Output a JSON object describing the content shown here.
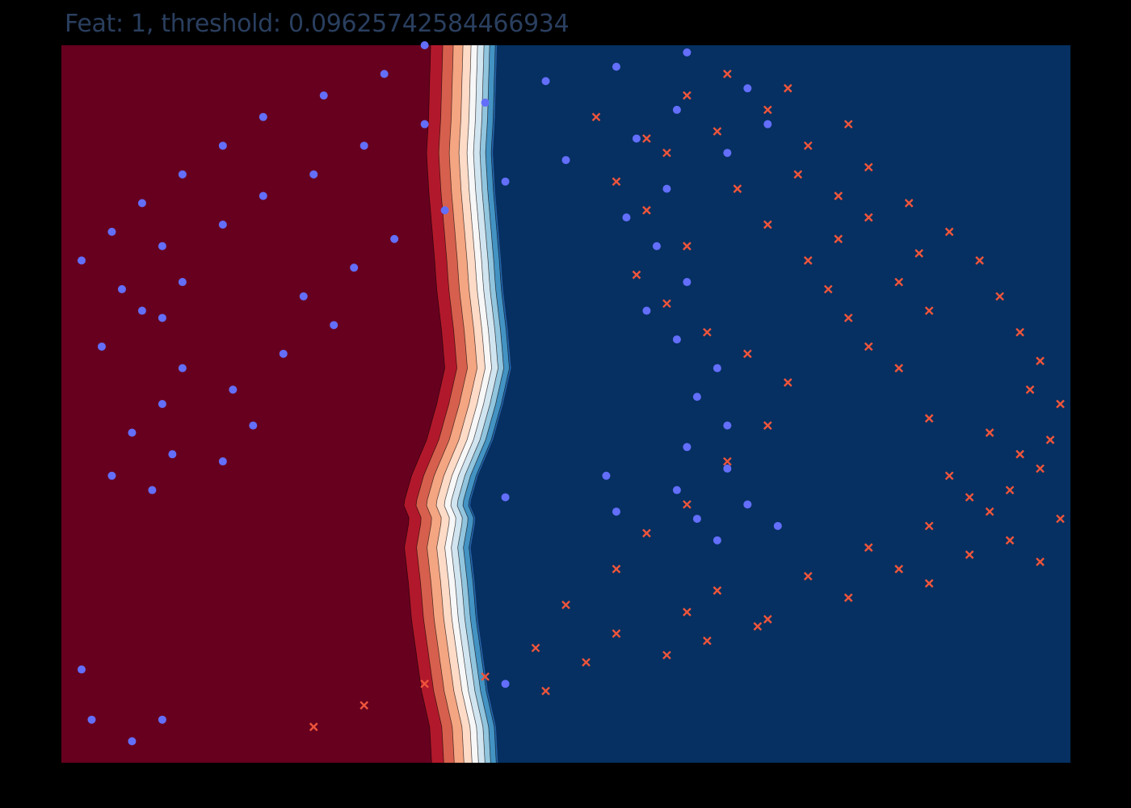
{
  "chart_data": {
    "type": "scatter",
    "title": "Feat: 1, threshold: 0.09625742584466934",
    "xlabel": "",
    "ylabel": "",
    "xlim": [
      0,
      1
    ],
    "ylim": [
      0,
      1
    ],
    "grid": false,
    "legend": "none",
    "colors": {
      "class_0": "#ef553b",
      "class_1": "#636efa",
      "region_0": "#67001f",
      "region_1": "#053061",
      "title": "#2a3f5f"
    },
    "decision_boundary": {
      "feature": 1,
      "threshold": 0.09625742584466934,
      "boundary_curve": [
        [
          0.0,
          0.415
        ],
        [
          0.05,
          0.413
        ],
        [
          0.1,
          0.405
        ],
        [
          0.15,
          0.4
        ],
        [
          0.2,
          0.395
        ],
        [
          0.25,
          0.392
        ],
        [
          0.3,
          0.388
        ],
        [
          0.34,
          0.393
        ],
        [
          0.36,
          0.387
        ],
        [
          0.4,
          0.395
        ],
        [
          0.45,
          0.41
        ],
        [
          0.5,
          0.42
        ],
        [
          0.55,
          0.428
        ],
        [
          0.6,
          0.425
        ],
        [
          0.66,
          0.42
        ],
        [
          0.7,
          0.418
        ],
        [
          0.75,
          0.415
        ],
        [
          0.8,
          0.412
        ],
        [
          0.85,
          0.41
        ],
        [
          0.9,
          0.412
        ],
        [
          0.95,
          0.413
        ],
        [
          1.0,
          0.414
        ]
      ]
    },
    "series": [
      {
        "marker": "x",
        "class": 0,
        "points": [
          [
            0.05,
            0.25
          ],
          [
            0.08,
            0.3
          ],
          [
            0.11,
            0.36
          ],
          [
            0.12,
            0.42
          ],
          [
            0.1,
            0.48
          ],
          [
            0.16,
            0.47
          ],
          [
            0.14,
            0.52
          ],
          [
            0.18,
            0.55
          ],
          [
            0.21,
            0.62
          ],
          [
            0.24,
            0.65
          ],
          [
            0.2,
            0.7
          ],
          [
            0.26,
            0.74
          ],
          [
            0.3,
            0.8
          ],
          [
            0.27,
            0.83
          ],
          [
            0.33,
            0.86
          ],
          [
            0.29,
            0.9
          ],
          [
            0.35,
            0.92
          ],
          [
            0.4,
            0.88
          ],
          [
            0.38,
            0.94
          ],
          [
            0.41,
            0.97
          ],
          [
            0.15,
            0.6
          ],
          [
            0.17,
            0.64
          ],
          [
            0.19,
            0.69
          ],
          [
            0.23,
            0.78
          ],
          [
            0.25,
            0.86
          ],
          [
            0.31,
            0.94
          ],
          [
            0.37,
            0.9
          ],
          [
            0.43,
            0.95
          ],
          [
            0.46,
            0.92
          ],
          [
            0.52,
            0.96
          ],
          [
            0.48,
            0.86
          ],
          [
            0.55,
            0.83
          ],
          [
            0.58,
            0.8
          ],
          [
            0.62,
            0.78
          ],
          [
            0.66,
            0.76
          ],
          [
            0.7,
            0.74
          ],
          [
            0.73,
            0.77
          ],
          [
            0.76,
            0.8
          ],
          [
            0.79,
            0.77
          ],
          [
            0.82,
            0.73
          ],
          [
            0.22,
            0.5
          ],
          [
            0.27,
            0.55
          ],
          [
            0.32,
            0.58
          ],
          [
            0.36,
            0.62
          ],
          [
            0.42,
            0.66
          ],
          [
            0.47,
            0.7
          ],
          [
            0.53,
            0.72
          ],
          [
            0.57,
            0.68
          ],
          [
            0.6,
            0.64
          ],
          [
            0.64,
            0.6
          ],
          [
            0.68,
            0.57
          ],
          [
            0.72,
            0.62
          ],
          [
            0.77,
            0.58
          ],
          [
            0.81,
            0.55
          ],
          [
            0.85,
            0.6
          ],
          [
            0.88,
            0.65
          ],
          [
            0.91,
            0.7
          ],
          [
            0.86,
            0.74
          ],
          [
            0.83,
            0.8
          ],
          [
            0.78,
            0.84
          ],
          [
            0.74,
            0.88
          ],
          [
            0.7,
            0.91
          ],
          [
            0.65,
            0.93
          ],
          [
            0.6,
            0.95
          ],
          [
            0.56,
            0.97
          ],
          [
            0.5,
            0.99
          ],
          [
            0.45,
            0.98
          ],
          [
            0.34,
            0.99
          ],
          [
            0.28,
            0.97
          ],
          [
            0.63,
            0.86
          ],
          [
            0.67,
            0.83
          ],
          [
            0.71,
            0.85
          ],
          [
            0.75,
            0.7
          ],
          [
            0.8,
            0.67
          ],
          [
            0.87,
            0.58
          ],
          [
            0.9,
            0.53
          ],
          [
            0.93,
            0.62
          ],
          [
            0.96,
            0.66
          ],
          [
            0.94,
            0.72
          ],
          [
            0.89,
            0.78
          ]
        ]
      },
      {
        "marker": "o",
        "class": 1,
        "points": [
          [
            0.58,
            0.04
          ],
          [
            0.63,
            0.08
          ],
          [
            0.67,
            0.12
          ],
          [
            0.72,
            0.1
          ],
          [
            0.75,
            0.16
          ],
          [
            0.79,
            0.2
          ],
          [
            0.82,
            0.25
          ],
          [
            0.86,
            0.3
          ],
          [
            0.89,
            0.36
          ],
          [
            0.92,
            0.42
          ],
          [
            0.95,
            0.48
          ],
          [
            0.97,
            0.55
          ],
          [
            0.99,
            0.62
          ],
          [
            1.0,
            0.36
          ],
          [
            0.96,
            0.32
          ],
          [
            0.93,
            0.26
          ],
          [
            0.9,
            0.2
          ],
          [
            0.86,
            0.16
          ],
          [
            0.82,
            0.12
          ],
          [
            0.78,
            0.08
          ],
          [
            0.74,
            0.05
          ],
          [
            0.7,
            0.02
          ],
          [
            0.66,
            0.06
          ],
          [
            0.62,
            0.1
          ],
          [
            0.55,
            0.12
          ],
          [
            0.5,
            0.1
          ],
          [
            0.46,
            0.07
          ],
          [
            0.43,
            0.11
          ],
          [
            0.4,
            0.05
          ],
          [
            0.38,
            0.09
          ],
          [
            0.42,
            0.16
          ],
          [
            0.47,
            0.19
          ],
          [
            0.52,
            0.17
          ],
          [
            0.57,
            0.22
          ],
          [
            0.61,
            0.27
          ],
          [
            0.65,
            0.24
          ],
          [
            0.69,
            0.29
          ],
          [
            0.73,
            0.33
          ],
          [
            0.77,
            0.38
          ],
          [
            0.81,
            0.44
          ],
          [
            0.84,
            0.5
          ],
          [
            0.87,
            0.57
          ],
          [
            0.91,
            0.61
          ],
          [
            0.94,
            0.68
          ],
          [
            0.89,
            0.7
          ],
          [
            0.85,
            0.66
          ],
          [
            0.8,
            0.6
          ],
          [
            0.76,
            0.56
          ],
          [
            0.72,
            0.59
          ],
          [
            0.67,
            0.62
          ],
          [
            0.63,
            0.58
          ],
          [
            0.59,
            0.61
          ],
          [
            0.55,
            0.65
          ],
          [
            0.51,
            0.63
          ],
          [
            0.47,
            0.66
          ],
          [
            0.44,
            0.62
          ],
          [
            0.41,
            0.66
          ],
          [
            0.38,
            0.61
          ],
          [
            0.36,
            0.68
          ],
          [
            0.34,
            0.63
          ],
          [
            0.31,
            0.65
          ],
          [
            0.33,
            0.71
          ],
          [
            0.35,
            0.55
          ],
          [
            0.37,
            0.44
          ],
          [
            0.4,
            0.54
          ],
          [
            0.06,
            0.1
          ],
          [
            0.11,
            0.44
          ],
          [
            0.06,
            0.03
          ],
          [
            0.13,
            0.02
          ],
          [
            0.03,
            0.07
          ]
        ]
      }
    ]
  }
}
